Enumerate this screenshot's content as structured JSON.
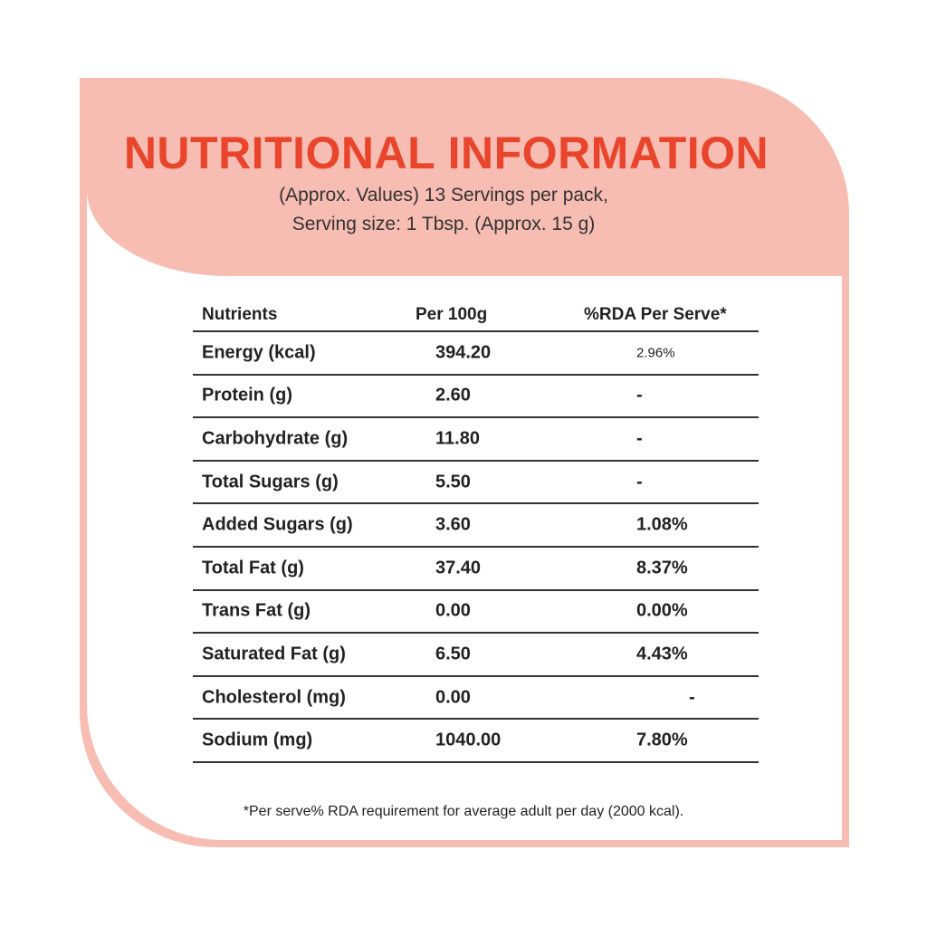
{
  "header": {
    "title": "NUTRITIONAL INFORMATION",
    "subtitle": [
      "(Approx. Values) 13 Servings per pack,",
      "Serving size: 1 Tbsp. (Approx. 15 g)"
    ]
  },
  "table": {
    "columns": [
      "Nutrients",
      "Per 100g",
      "%RDA Per Serve*"
    ],
    "rows": [
      [
        "Energy (kcal)",
        "394.20",
        "2.96%"
      ],
      [
        "Protein (g)",
        "2.60",
        "-"
      ],
      [
        "Carbohydrate (g)",
        "11.80",
        "-"
      ],
      [
        "Total Sugars (g)",
        "5.50",
        "-"
      ],
      [
        "Added Sugars (g)",
        "3.60",
        "1.08%"
      ],
      [
        "Total Fat (g)",
        "37.40",
        "8.37%"
      ],
      [
        "Trans Fat (g)",
        "0.00",
        "0.00%"
      ],
      [
        "Saturated Fat (g)",
        "6.50",
        "4.43%"
      ],
      [
        "Cholesterol (mg)",
        "0.00",
        "-"
      ],
      [
        "Sodium (mg)",
        "1040.00",
        "7.80%"
      ]
    ]
  },
  "footnote": "*Per serve% RDA requirement for average adult per day (2000 kcal)."
}
